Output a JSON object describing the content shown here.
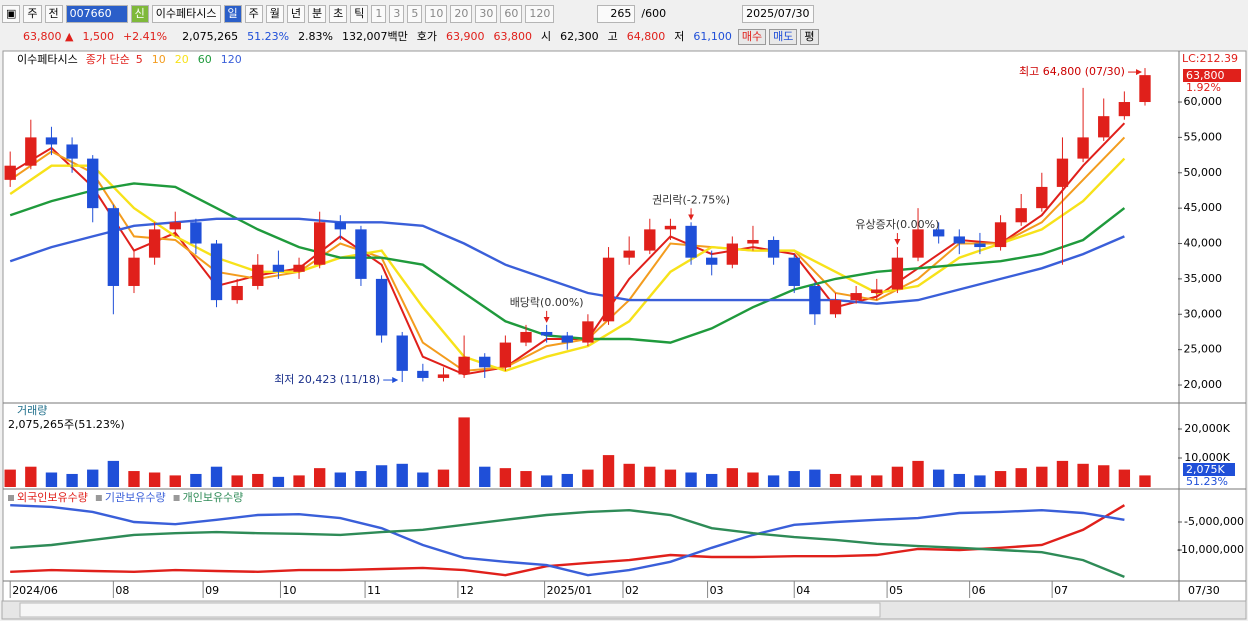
{
  "toolbar": [
    "주",
    "전",
    "007660",
    "신",
    "이수페타시스",
    "일",
    "주",
    "월",
    "년",
    "분",
    "초",
    "틱",
    "1",
    "3",
    "5",
    "10",
    "20",
    "30",
    "60",
    "120",
    "265",
    "/600",
    "2025/07/30"
  ],
  "info": [
    "63,800 ▲",
    "1,500",
    "+2.41%",
    "2,075,265",
    "51.23%",
    "2.83%",
    "132,007백만",
    "호가",
    "63,900",
    "63,800",
    "시",
    "62,300",
    "고",
    "64,800",
    "저",
    "61,100",
    "매수",
    "매도",
    "평"
  ],
  "chart_data": [
    {
      "type": "candlestick",
      "label": "이수페타시스",
      "ma_label": "종가 단순",
      "lc": "LC:212.39",
      "price_tag": "63,800",
      "change_tag": "1.92%",
      "up_color": "#e0201b",
      "down_color": "#1f4fd8",
      "x": [
        0,
        1,
        2,
        3,
        4,
        5,
        6,
        7,
        8,
        9,
        10,
        11,
        12,
        13,
        14,
        15,
        16,
        17,
        18,
        19,
        20,
        21,
        22,
        23,
        24,
        25,
        26,
        27,
        28,
        29,
        30,
        31,
        32,
        33,
        34,
        35,
        36,
        37,
        38,
        39,
        40,
        41,
        42,
        43,
        44,
        45,
        46,
        47,
        48,
        49,
        50,
        51,
        52,
        53,
        54,
        55
      ],
      "open": [
        49000,
        51000,
        55000,
        54000,
        52000,
        45000,
        34000,
        38000,
        42000,
        43000,
        40000,
        32000,
        34000,
        37000,
        36000,
        37000,
        43000,
        42000,
        35000,
        27000,
        22000,
        21000,
        21500,
        24000,
        22500,
        26000,
        27500,
        27000,
        26000,
        29000,
        38000,
        39000,
        42000,
        42500,
        38000,
        37000,
        40000,
        40500,
        38000,
        34000,
        30000,
        32000,
        33000,
        33500,
        38000,
        42000,
        41000,
        40000,
        39500,
        43000,
        45000,
        48000,
        52000,
        55000,
        58000,
        60000
      ],
      "high": [
        53000,
        57500,
        56500,
        55000,
        52500,
        45500,
        39000,
        43000,
        44500,
        43500,
        40500,
        35000,
        38500,
        39000,
        38000,
        44500,
        44000,
        42500,
        35500,
        27500,
        23000,
        22500,
        27000,
        24500,
        27000,
        28500,
        28500,
        27500,
        30000,
        39500,
        41000,
        43500,
        43500,
        43000,
        39000,
        41000,
        42500,
        41000,
        38500,
        34500,
        33000,
        34000,
        35000,
        39500,
        45000,
        43000,
        42000,
        41500,
        44000,
        47000,
        50000,
        55000,
        62000,
        60500,
        61500,
        64800
      ],
      "low": [
        48000,
        50500,
        52500,
        50000,
        43000,
        30000,
        33000,
        37000,
        41000,
        38500,
        31000,
        31500,
        33500,
        35000,
        35000,
        36500,
        40500,
        34000,
        26000,
        20423,
        20500,
        20500,
        21000,
        21000,
        22000,
        25500,
        26000,
        25000,
        25500,
        28500,
        37000,
        38500,
        40500,
        37000,
        35500,
        36500,
        39000,
        37000,
        33000,
        28500,
        29500,
        31500,
        32000,
        33000,
        37500,
        40000,
        38500,
        38500,
        39000,
        42500,
        44500,
        37000,
        51500,
        54500,
        57500,
        59500
      ],
      "close": [
        51000,
        55000,
        54000,
        52000,
        45000,
        34000,
        38000,
        42000,
        43000,
        40000,
        32000,
        34000,
        37000,
        36000,
        37000,
        43000,
        42000,
        35000,
        27000,
        22000,
        21000,
        21500,
        24000,
        22500,
        26000,
        27500,
        27000,
        26000,
        29000,
        38000,
        39000,
        42000,
        42500,
        38000,
        37000,
        40000,
        40500,
        38000,
        34000,
        30000,
        32000,
        33000,
        33500,
        38000,
        42000,
        41000,
        40000,
        39500,
        43000,
        45000,
        48000,
        52000,
        55000,
        58000,
        60000,
        63800
      ],
      "ma": {
        "x": [
          0,
          2,
          4,
          6,
          8,
          10,
          12,
          14,
          16,
          18,
          20,
          22,
          24,
          26,
          28,
          30,
          32,
          34,
          36,
          38,
          40,
          42,
          44,
          46,
          48,
          50,
          52,
          54
        ],
        "series": [
          {
            "name": "5",
            "color": "#e0201b",
            "values": [
              50000,
              53500,
              48000,
              39000,
              41500,
              34000,
              35500,
              36500,
              41000,
              37000,
              24000,
              21500,
              22500,
              26500,
              26500,
              35000,
              41000,
              38500,
              39500,
              38500,
              31000,
              32500,
              36500,
              40500,
              40000,
              44000,
              51000,
              57000
            ]
          },
          {
            "name": "10",
            "color": "#f39c1e",
            "values": [
              49000,
              53000,
              50000,
              41000,
              40500,
              36000,
              35000,
              36000,
              40000,
              38000,
              26000,
              22000,
              22500,
              25500,
              26500,
              32000,
              40000,
              39500,
              39000,
              39000,
              33000,
              32000,
              35000,
              40000,
              40000,
              43000,
              49000,
              55000
            ]
          },
          {
            "name": "20",
            "color": "#f7e21a",
            "values": [
              47000,
              51000,
              51000,
              45000,
              41000,
              38000,
              36000,
              36000,
              38000,
              39000,
              31000,
              24000,
              22000,
              24000,
              25500,
              29000,
              36000,
              39500,
              39000,
              39000,
              36000,
              33000,
              34000,
              38000,
              40000,
              42000,
              46000,
              52000
            ]
          },
          {
            "name": "60",
            "color": "#1f9a3c",
            "values": [
              44000,
              46000,
              47500,
              48500,
              48000,
              45000,
              42000,
              39500,
              38000,
              38000,
              37000,
              33000,
              29000,
              27000,
              26500,
              26500,
              26000,
              28000,
              31000,
              33500,
              35000,
              36000,
              36500,
              37000,
              37500,
              38500,
              40500,
              45000
            ]
          },
          {
            "name": "120",
            "color": "#3a5fd9",
            "values": [
              37500,
              39500,
              41000,
              42500,
              43000,
              43500,
              43500,
              43500,
              43000,
              43000,
              42500,
              40000,
              37000,
              35000,
              33000,
              32000,
              32000,
              32000,
              32000,
              32000,
              32000,
              31500,
              32000,
              33500,
              35000,
              36500,
              38500,
              41000
            ]
          }
        ]
      },
      "annotations": [
        {
          "text": "최고 64,800 (07/30)",
          "x": 55,
          "anchor": "high"
        },
        {
          "text": "최저 20,423 (11/18)",
          "x": 19,
          "anchor": "low"
        },
        {
          "text": "배당락(0.00%)",
          "x": 26,
          "anchor": "event"
        },
        {
          "text": "권리락(-2.75%)",
          "x": 33,
          "anchor": "event"
        },
        {
          "text": "유상증자(0.00%)",
          "x": 43,
          "anchor": "event"
        }
      ],
      "xlim": [
        -0.3,
        56.6
      ],
      "ylim": [
        17600,
        67070
      ],
      "yticks": [
        {
          "value": 20000,
          "label": "20,000"
        },
        {
          "value": 25000,
          "label": "25,000"
        },
        {
          "value": 30000,
          "label": "30,000"
        },
        {
          "value": 35000,
          "label": "35,000"
        },
        {
          "value": 40000,
          "label": "40,000"
        },
        {
          "value": 45000,
          "label": "45,000"
        },
        {
          "value": 50000,
          "label": "50,000"
        },
        {
          "value": 55000,
          "label": "55,000"
        },
        {
          "value": 60000,
          "label": "60,000"
        }
      ]
    },
    {
      "type": "bar",
      "title": "거래량",
      "subtitle": "2,075,265주(51.23%)",
      "value_tag": "2,075K",
      "ratio_tag": "51.23%",
      "values": [
        6000,
        7000,
        5000,
        4500,
        6000,
        9000,
        5500,
        5000,
        4000,
        4500,
        7000,
        4000,
        4500,
        3500,
        4000,
        6500,
        5000,
        5500,
        7500,
        8000,
        5000,
        6000,
        24000,
        7000,
        6500,
        5500,
        4000,
        4500,
        6000,
        11000,
        8000,
        7000,
        6000,
        5000,
        4500,
        6500,
        5000,
        4000,
        5500,
        6000,
        4500,
        4000,
        4000,
        7000,
        9000,
        6000,
        4500,
        4000,
        5500,
        6500,
        7000,
        9000,
        8000,
        7500,
        6000,
        4000
      ],
      "xlim": [
        -0.3,
        56.6
      ],
      "ylim": [
        0,
        27930
      ],
      "yticks": [
        {
          "value": 10000,
          "label": "10,000K"
        },
        {
          "value": 20000,
          "label": "20,000K"
        }
      ]
    },
    {
      "type": "line",
      "end_label": "07/30",
      "x": [
        0,
        2,
        4,
        6,
        8,
        10,
        12,
        14,
        16,
        18,
        20,
        22,
        24,
        26,
        28,
        30,
        32,
        34,
        36,
        38,
        40,
        42,
        44,
        46,
        48,
        50,
        52,
        54
      ],
      "series": [
        {
          "name": "외국인보유수량",
          "color": "#e0201b",
          "values": [
            -13900000,
            -13600000,
            -13750000,
            -13900000,
            -13600000,
            -13750000,
            -13900000,
            -13600000,
            -13600000,
            -13400000,
            -13200000,
            -13600000,
            -14500000,
            -12900000,
            -12300000,
            -11800000,
            -10900000,
            -11250000,
            -11250000,
            -11100000,
            -11100000,
            -10900000,
            -9800000,
            -10000000,
            -9600000,
            -9100000,
            -6400000,
            -2000000
          ]
        },
        {
          "name": "기관보유수량",
          "color": "#3a5fd9",
          "values": [
            -2000000,
            -2300000,
            -3200000,
            -5000000,
            -5400000,
            -4600000,
            -3750000,
            -3600000,
            -4300000,
            -6100000,
            -9100000,
            -11400000,
            -12100000,
            -12700000,
            -14500000,
            -13600000,
            -12100000,
            -9600000,
            -7300000,
            -5500000,
            -5000000,
            -4600000,
            -4300000,
            -3400000,
            -3200000,
            -2900000,
            -3400000,
            -4600000
          ]
        },
        {
          "name": "개인보유수량",
          "color": "#2e8b57",
          "values": [
            -9600000,
            -9100000,
            -8200000,
            -7300000,
            -7000000,
            -6800000,
            -7000000,
            -7100000,
            -7300000,
            -6800000,
            -6400000,
            -5500000,
            -4600000,
            -3750000,
            -3200000,
            -2900000,
            -3750000,
            -6100000,
            -7000000,
            -7700000,
            -8200000,
            -8900000,
            -9300000,
            -9600000,
            -10000000,
            -10400000,
            -11800000,
            -14800000
          ]
        }
      ],
      "xlim": [
        -0.3,
        56.6
      ],
      "ylim": [
        -15360000,
        360000
      ],
      "yticks": [
        {
          "value": -10000000,
          "label": "-10,000,000"
        },
        {
          "value": -5000000,
          "label": "-5,000,000"
        }
      ],
      "xticks": [
        {
          "value": 0,
          "label": "2024/06"
        },
        {
          "value": 5,
          "label": "08"
        },
        {
          "value": 9.35,
          "label": "09"
        },
        {
          "value": 13.1,
          "label": "10"
        },
        {
          "value": 17.2,
          "label": "11"
        },
        {
          "value": 21.7,
          "label": "12"
        },
        {
          "value": 25.9,
          "label": "2025/01"
        },
        {
          "value": 29.7,
          "label": "02"
        },
        {
          "value": 33.8,
          "label": "03"
        },
        {
          "value": 38,
          "label": "04"
        },
        {
          "value": 42.5,
          "label": "05"
        },
        {
          "value": 46.5,
          "label": "06"
        },
        {
          "value": 50.5,
          "label": "07"
        }
      ]
    }
  ]
}
